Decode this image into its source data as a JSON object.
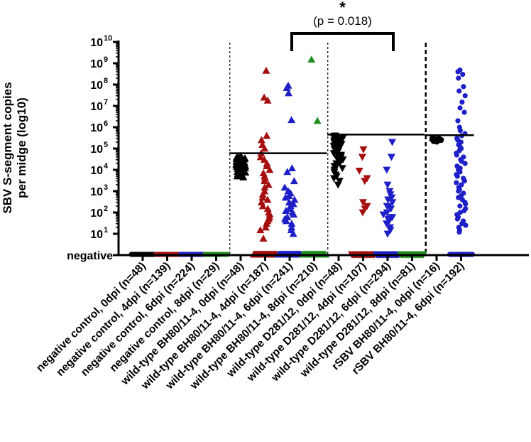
{
  "chart_data": {
    "type": "scatter",
    "title": "",
    "ylabel_lines": [
      "SBV S-segment copies",
      "per midge (log10)"
    ],
    "y_scale": "log",
    "y_ticks": [
      {
        "value": 10,
        "label": "10",
        "exp": "1"
      },
      {
        "value": 100,
        "label": "10",
        "exp": "2"
      },
      {
        "value": 1000,
        "label": "10",
        "exp": "3"
      },
      {
        "value": 10000,
        "label": "10",
        "exp": "4"
      },
      {
        "value": 100000,
        "label": "10",
        "exp": "5"
      },
      {
        "value": 1000000,
        "label": "10",
        "exp": "6"
      },
      {
        "value": 10000000,
        "label": "10",
        "exp": "7"
      },
      {
        "value": 100000000,
        "label": "10",
        "exp": "8"
      },
      {
        "value": 1000000000,
        "label": "10",
        "exp": "9"
      },
      {
        "value": 10000000000,
        "label": "10",
        "exp": "10"
      }
    ],
    "negative_label": "negative",
    "ylim": [
      0,
      10000000000
    ],
    "groups": [
      {
        "label": "negative control, 0dpi (n=48)",
        "color": "#000000",
        "marker": "circle",
        "values": [],
        "negatives": 48
      },
      {
        "label": "negative control, 4dpi (n=139)",
        "color": "#a60f0f",
        "marker": "circle",
        "values": [],
        "negatives": 139
      },
      {
        "label": "negative control, 6dpi (n=224)",
        "color": "#1f1fc8",
        "marker": "circle",
        "values": [],
        "negatives": 224
      },
      {
        "label": "negative control, 8dpi (n=29)",
        "color": "#1e8f1e",
        "marker": "circle",
        "values": [],
        "negatives": 29
      },
      {
        "label": "wild-type BH80/11-4, 0dpi (n=48)",
        "color": "#000000",
        "marker": "triangle-up",
        "negatives": 0,
        "values": [
          45000,
          42000,
          40000,
          38000,
          36000,
          35000,
          33000,
          32000,
          30000,
          29000,
          28000,
          27000,
          26000,
          25000,
          24000,
          23000,
          22000,
          21000,
          20000,
          19000,
          18000,
          17000,
          16000,
          15000,
          14000,
          13000,
          12000,
          11000,
          10000,
          9500,
          9000,
          8500,
          8000,
          7500,
          7000,
          6500,
          6000,
          5500,
          5000,
          4500,
          30000,
          25000,
          20000,
          35000,
          28000,
          22000,
          18000,
          15000
        ]
      },
      {
        "label": "wild-type BH80/11-4, 4dpi (n=187)",
        "color": "#a60f0f",
        "marker": "triangle-up",
        "negatives": 60,
        "values": [
          450000000,
          25000000,
          18000000,
          400000,
          250000,
          150000,
          100000,
          60000,
          40000,
          30000,
          20000,
          15000,
          10000,
          7000,
          5000,
          4000,
          3000,
          2000,
          1500,
          1000,
          700,
          500,
          400,
          300,
          200,
          150,
          100,
          80,
          60,
          50,
          40,
          30,
          20,
          15,
          6
        ]
      },
      {
        "label": "wild-type BH80/11-4, 6dpi (n=241)",
        "color": "#1f1fc8",
        "marker": "triangle-up",
        "negatives": 120,
        "values": [
          90000000,
          70000000,
          40000000,
          2200000,
          12000,
          8000,
          3000,
          1500,
          1000,
          800,
          600,
          500,
          400,
          300,
          250,
          200,
          150,
          120,
          100,
          80,
          60,
          50,
          40,
          30,
          20,
          15,
          10
        ]
      },
      {
        "label": "wild-type BH80/11-4, 8dpi (n=210)",
        "color": "#1e8f1e",
        "marker": "triangle-up",
        "negatives": 80,
        "values": [
          1500000000,
          2000000
        ]
      },
      {
        "label": "wild-type D281/12, 0dpi (n=48)",
        "color": "#000000",
        "marker": "triangle-down",
        "negatives": 0,
        "values": [
          400000,
          380000,
          350000,
          330000,
          300000,
          280000,
          260000,
          250000,
          240000,
          230000,
          220000,
          210000,
          200000,
          190000,
          180000,
          170000,
          160000,
          150000,
          140000,
          130000,
          120000,
          110000,
          100000,
          90000,
          80000,
          70000,
          60000,
          50000,
          45000,
          40000,
          35000,
          30000,
          25000,
          22000,
          20000,
          18000,
          15000,
          12000,
          10000,
          8000,
          6000,
          5000,
          4000,
          3000,
          2000,
          100000,
          200000,
          300000
        ]
      },
      {
        "label": "wild-type D281/12, 4dpi (n=107)",
        "color": "#a60f0f",
        "marker": "triangle-down",
        "negatives": 60,
        "values": [
          90000,
          40000,
          9000,
          4000,
          3000,
          300,
          200,
          150,
          100
        ]
      },
      {
        "label": "wild-type D281/12, 6dpi (n=294)",
        "color": "#1f1fc8",
        "marker": "triangle-down",
        "negatives": 200,
        "values": [
          200000,
          40000,
          10000,
          2000,
          1000,
          700,
          500,
          400,
          300,
          200,
          150,
          100,
          80,
          60,
          50,
          40,
          30,
          20,
          15,
          10,
          200,
          60
        ]
      },
      {
        "label": "wild-type D281/12, 8dpi (n=81)",
        "color": "#1e8f1e",
        "marker": "triangle-down",
        "negatives": 81,
        "values": []
      },
      {
        "label": "rSBV BH80/11-4, 0dpi (n=16)",
        "color": "#000000",
        "marker": "circle",
        "negatives": 0,
        "values": [
          320000,
          300000,
          280000,
          270000,
          260000,
          250000,
          240000,
          230000,
          220000,
          210000,
          200000,
          290000,
          260000,
          240000,
          220000,
          300000
        ]
      },
      {
        "label": "rSBV BH80/11-4, 6dpi (n=192)",
        "color": "#1f1fc8",
        "marker": "circle",
        "negatives": 60,
        "values": [
          480000000,
          400000000,
          300000000,
          200000000,
          80000000,
          50000000,
          30000000,
          15000000,
          8000000,
          5000000,
          2000000,
          1000000,
          700000,
          500000,
          400000,
          300000,
          250000,
          200000,
          150000,
          120000,
          100000,
          80000,
          60000,
          50000,
          40000,
          30000,
          25000,
          20000,
          15000,
          12000,
          10000,
          8000,
          6000,
          5000,
          4000,
          3000,
          2500,
          2000,
          1500,
          1200,
          1000,
          800,
          600,
          500,
          400,
          300,
          250,
          200,
          150,
          120,
          100,
          80,
          60,
          50,
          40,
          30,
          25,
          20,
          15,
          12
        ]
      }
    ],
    "means": [
      {
        "from_group": 4,
        "to_group": 7,
        "value": 60000
      },
      {
        "from_group": 8,
        "to_group": 11,
        "value": 450000
      },
      {
        "from_group": 12,
        "to_group": 13,
        "value": 420000
      }
    ],
    "separators": [
      {
        "after_group": 3,
        "style": "dotted"
      },
      {
        "after_group": 7,
        "style": "dotted"
      },
      {
        "after_group": 11,
        "style": "dashed"
      }
    ],
    "significance": {
      "from_group": 6,
      "to_group": 10,
      "star": "*",
      "text": "(p = 0.018)"
    }
  }
}
